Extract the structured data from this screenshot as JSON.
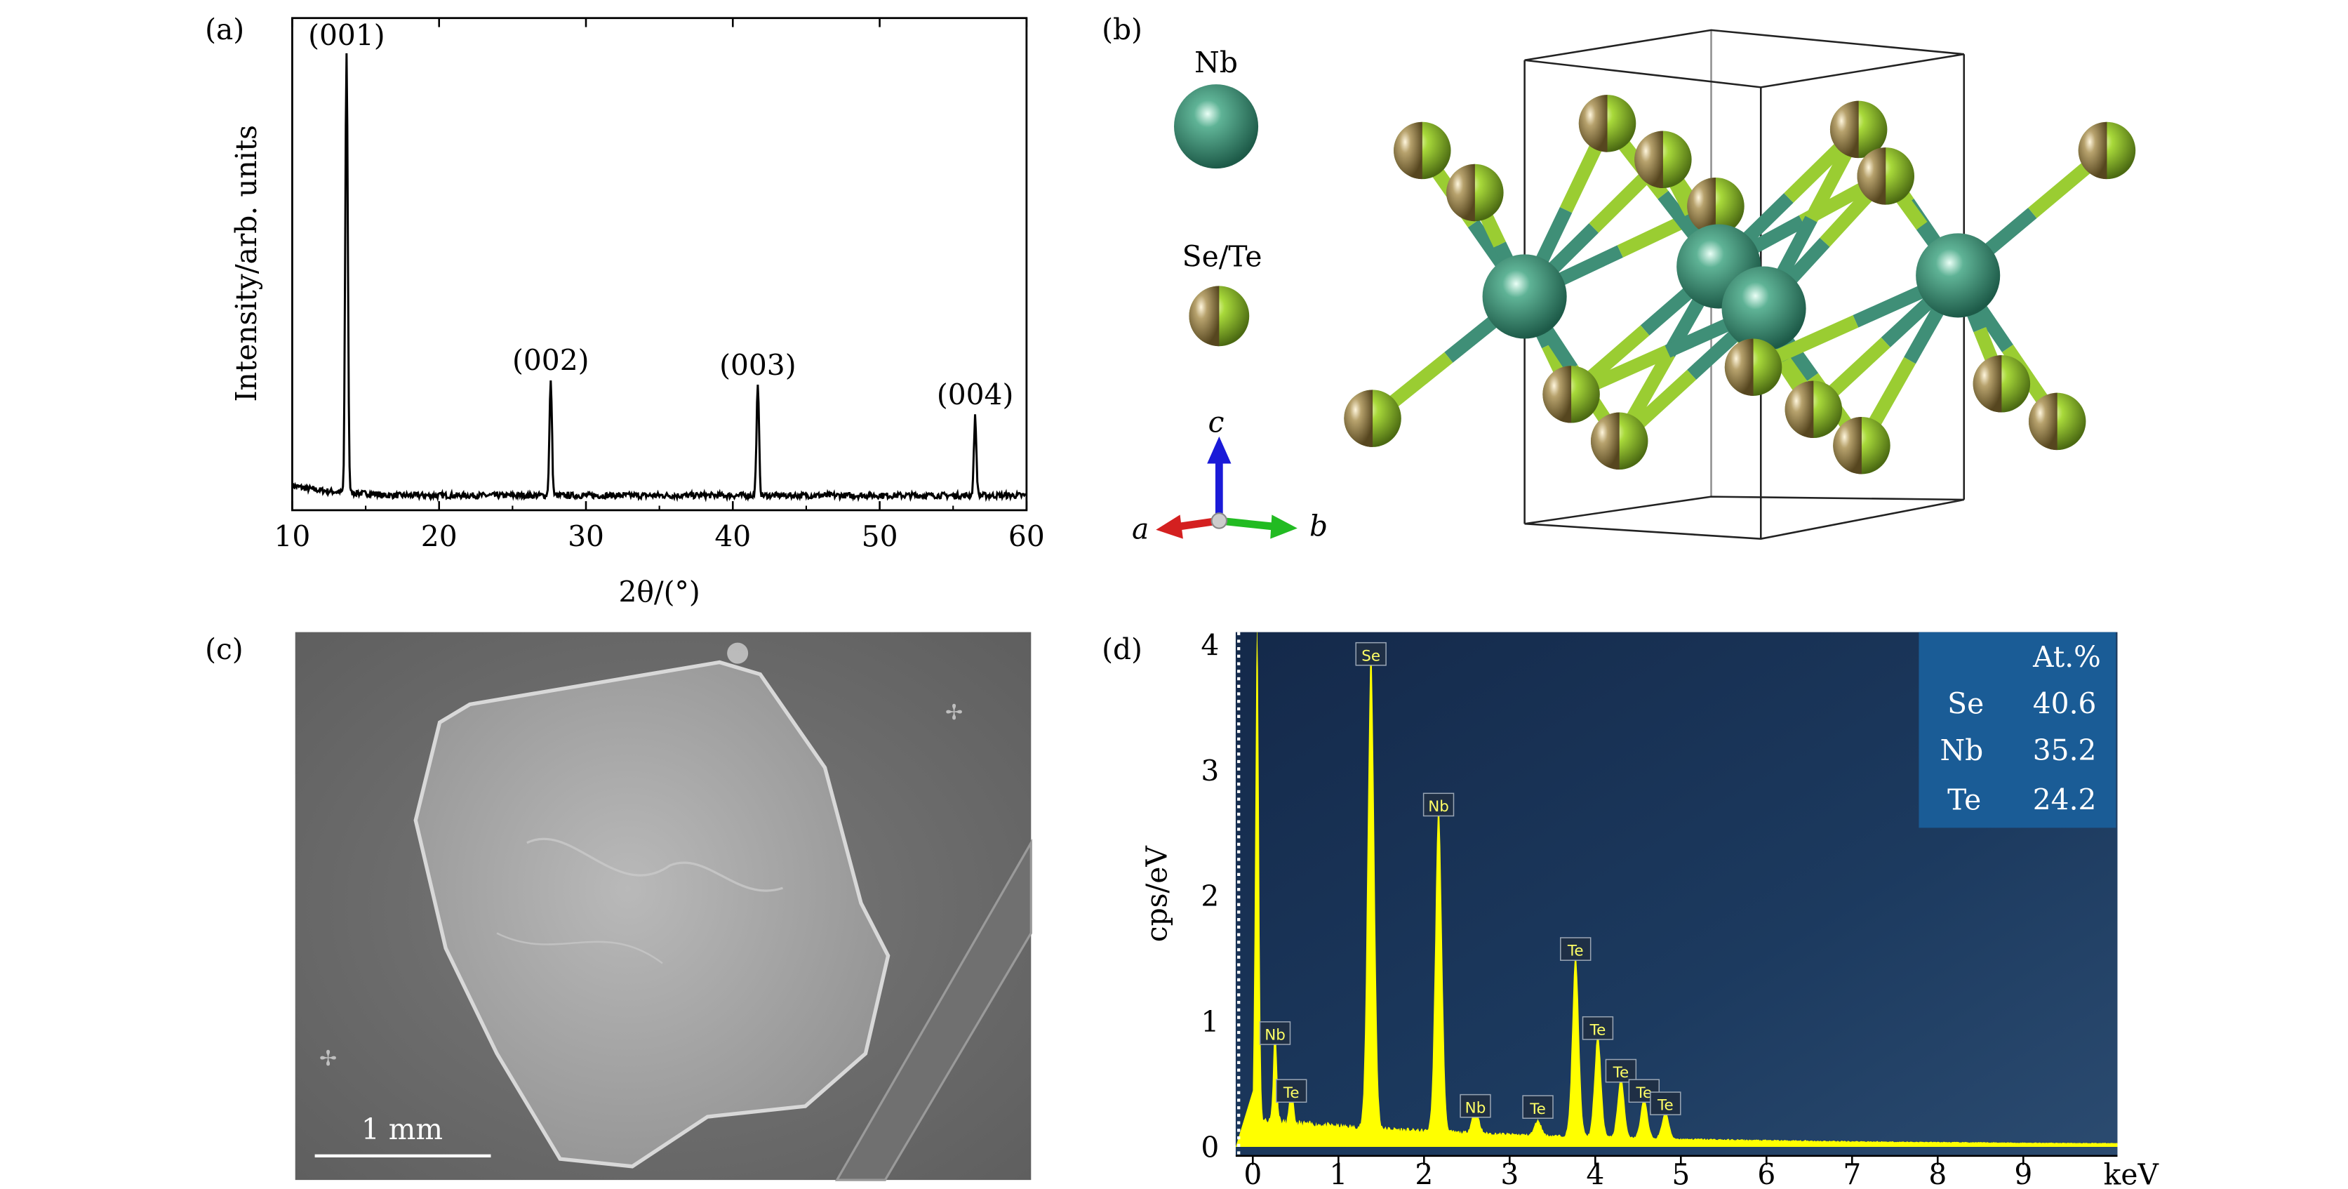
{
  "panels": {
    "a": {
      "label": "(a)",
      "chart_data": {
        "type": "line",
        "xlabel": "2θ/(°)",
        "ylabel": "Intensity/arb. units",
        "xlim": [
          10,
          60
        ],
        "xticks": [
          10,
          20,
          30,
          40,
          50,
          60
        ],
        "y_tick_labels": "none",
        "peaks": [
          {
            "label": "(001)",
            "x": 13.7,
            "y": 0.92
          },
          {
            "label": "(002)",
            "x": 27.6,
            "y": 0.26
          },
          {
            "label": "(003)",
            "x": 41.7,
            "y": 0.25
          },
          {
            "label": "(004)",
            "x": 56.5,
            "y": 0.19
          }
        ],
        "baseline": 0.03,
        "ylim": [
          0,
          1
        ]
      }
    },
    "b": {
      "label": "(b)",
      "legend": [
        {
          "name": "Nb",
          "color": "#3f8f77"
        },
        {
          "name": "Se/Te",
          "color": "#9acd32"
        }
      ],
      "axes": {
        "a": "a",
        "b": "b",
        "c": "c"
      }
    },
    "c": {
      "label": "(c)",
      "scale_bar": "1 mm"
    },
    "d": {
      "label": "(d)",
      "chart_data": {
        "type": "area",
        "xlabel": "keV",
        "ylabel": "cps/eV",
        "xlim": [
          -0.2,
          10.1
        ],
        "ylim": [
          0,
          4.1
        ],
        "xticks": [
          0,
          1,
          2,
          3,
          4,
          5,
          6,
          7,
          8,
          9
        ],
        "yticks": [
          0,
          1,
          2,
          3,
          4
        ],
        "peaks": [
          {
            "label": "",
            "x": 0.05,
            "y": 4.0
          },
          {
            "label": "Nb",
            "x": 0.26,
            "y": 0.78
          },
          {
            "label": "Te",
            "x": 0.45,
            "y": 0.32
          },
          {
            "label": "Se",
            "x": 1.38,
            "y": 3.8
          },
          {
            "label": "Nb",
            "x": 2.17,
            "y": 2.6
          },
          {
            "label": "Nb",
            "x": 2.6,
            "y": 0.2
          },
          {
            "label": "Te",
            "x": 3.33,
            "y": 0.12
          },
          {
            "label": "Te",
            "x": 3.77,
            "y": 1.45
          },
          {
            "label": "Te",
            "x": 4.03,
            "y": 0.82
          },
          {
            "label": "Te",
            "x": 4.3,
            "y": 0.48
          },
          {
            "label": "Te",
            "x": 4.57,
            "y": 0.32
          },
          {
            "label": "Te",
            "x": 4.82,
            "y": 0.22
          }
        ],
        "composition_table": {
          "header": "At.%",
          "rows": [
            {
              "element": "Se",
              "value": "40.6"
            },
            {
              "element": "Nb",
              "value": "35.2"
            },
            {
              "element": "Te",
              "value": "24.2"
            }
          ]
        },
        "colors": {
          "background": "#1a3457",
          "spectrum": "#ffff00",
          "table": "#1a5c96"
        }
      }
    }
  }
}
